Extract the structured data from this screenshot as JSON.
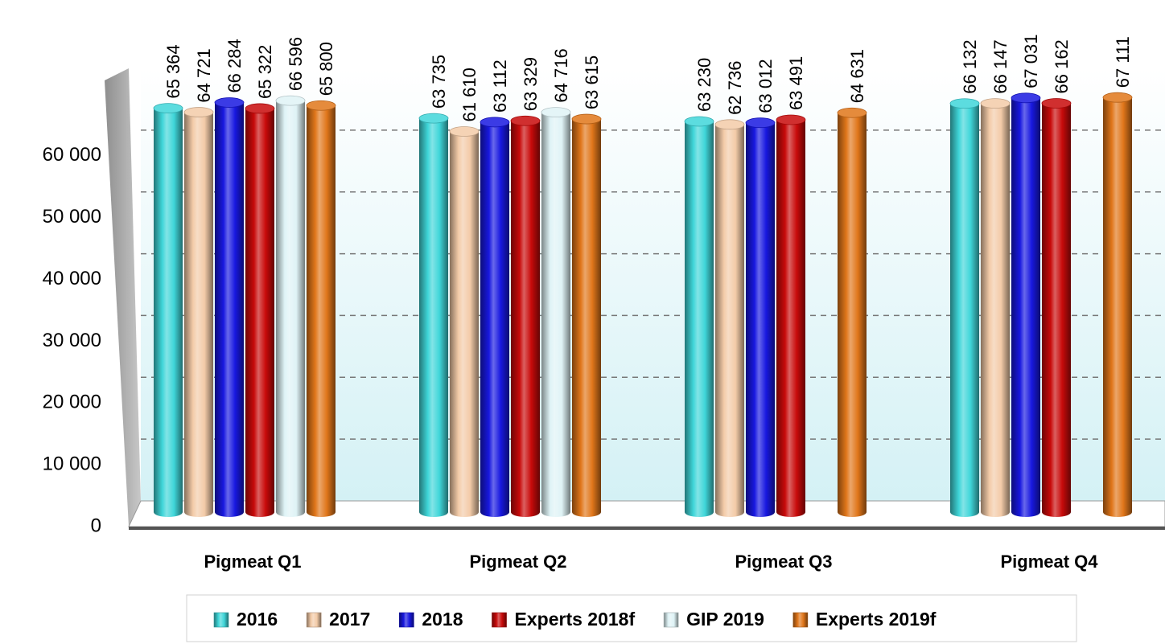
{
  "chart_data": {
    "type": "bar",
    "categories": [
      "Pigmeat Q1",
      "Pigmeat Q2",
      "Pigmeat Q3",
      "Pigmeat Q4"
    ],
    "series": [
      {
        "name": "2016",
        "color": "#3fd6d9",
        "values": [
          65364,
          63735,
          63230,
          66132
        ],
        "value_labels": [
          "65 364",
          "63 735",
          "63 230",
          "66 132"
        ]
      },
      {
        "name": "2017",
        "color": "#f3cba8",
        "values": [
          64721,
          61610,
          62736,
          66147
        ],
        "value_labels": [
          "64 721",
          "61 610",
          "62 736",
          "66 147"
        ]
      },
      {
        "name": "2018",
        "color": "#1818e0",
        "values": [
          66284,
          63112,
          63012,
          67031
        ],
        "value_labels": [
          "66 284",
          "63 112",
          "63 012",
          "67 031"
        ]
      },
      {
        "name": "Experts 2018f",
        "color": "#c80a0a",
        "values": [
          65322,
          63329,
          63491,
          66162
        ],
        "value_labels": [
          "65 322",
          "63 329",
          "63 491",
          "66 162"
        ]
      },
      {
        "name": "GIP 2019",
        "color": "#dff3f6",
        "values": [
          66596,
          64716,
          null,
          null
        ],
        "value_labels": [
          "66 596",
          "64 716",
          null,
          null
        ]
      },
      {
        "name": "Experts 2019f",
        "color": "#e0761a",
        "values": [
          65800,
          63615,
          64631,
          67111
        ],
        "value_labels": [
          "65 800",
          "63 615",
          "64 631",
          "67 111"
        ]
      }
    ],
    "ylim": [
      0,
      70000
    ],
    "yticks": [
      0,
      {
        "value": 10000,
        "label": "10 000"
      },
      {
        "value": 20000,
        "label": "20 000"
      },
      {
        "value": 30000,
        "label": "30 000"
      },
      {
        "value": 40000,
        "label": "40 000"
      },
      {
        "value": 50000,
        "label": "50 000"
      },
      {
        "value": 60000,
        "label": "60 000"
      }
    ],
    "grid": true
  }
}
